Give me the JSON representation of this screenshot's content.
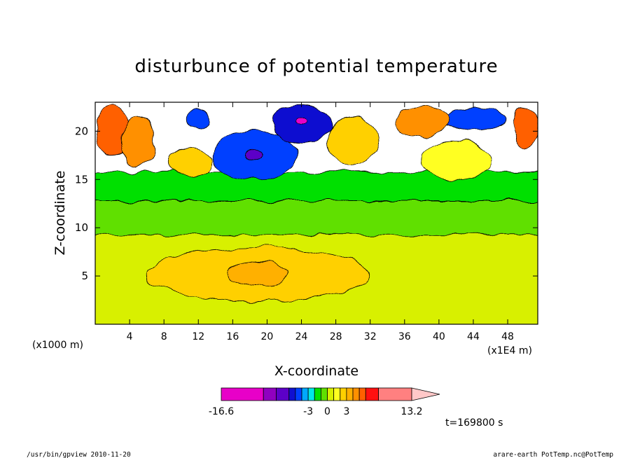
{
  "chart_data": {
    "type": "heatmap",
    "title": "disturbunce of potential temperature",
    "xlabel": "X-coordinate",
    "ylabel": "Z-coordinate",
    "x_unit_label": "(x1E4 m)",
    "y_unit_label": "(x1000 m)",
    "xlim": [
      0,
      51.5
    ],
    "ylim": [
      0,
      23
    ],
    "x_ticks": [
      4,
      8,
      12,
      16,
      20,
      24,
      28,
      32,
      36,
      40,
      44,
      48
    ],
    "y_ticks": [
      5,
      10,
      15,
      20
    ],
    "time_label": "t=169800 s",
    "colorbar": {
      "min": -16.6,
      "max": 13.2,
      "tick_labels": [
        "-16.6",
        "-3",
        "0",
        "3",
        "13.2"
      ],
      "tick_values": [
        -16.6,
        -3,
        0,
        3,
        13.2
      ],
      "levels": [
        -16.6,
        -10.0,
        -8.0,
        -6.0,
        -5.0,
        -4.0,
        -3.0,
        -2.0,
        -1.0,
        0.0,
        1.0,
        2.0,
        3.0,
        4.0,
        5.0,
        6.0,
        8.0,
        13.2
      ],
      "colors": [
        "#e800c8",
        "#9000c0",
        "#5c00c8",
        "#1010d0",
        "#0040ff",
        "#00a8ff",
        "#00e8e8",
        "#00e000",
        "#60e000",
        "#d8f000",
        "#ffff20",
        "#ffd000",
        "#ffb000",
        "#ff9000",
        "#ff6000",
        "#ff1010",
        "#ff8080"
      ]
    },
    "features": [
      {
        "type": "band",
        "x": [
          0,
          51.5
        ],
        "y": [
          12.8,
          15.8
        ],
        "value": -1.5
      },
      {
        "type": "band",
        "x": [
          0,
          51.5
        ],
        "y": [
          9.3,
          12.8
        ],
        "value": -0.6
      },
      {
        "type": "band",
        "x": [
          0,
          51.5
        ],
        "y": [
          0,
          9.3
        ],
        "value": 0.6
      },
      {
        "type": "blob",
        "cx": 19,
        "cy": 5.2,
        "rx": 13,
        "ry": 2.8,
        "value": 2.4
      },
      {
        "type": "blob",
        "cx": 19,
        "cy": 5.2,
        "rx": 3.5,
        "ry": 1.3,
        "value": 3.4
      },
      {
        "type": "blob",
        "cx": 18.5,
        "cy": 17.5,
        "rx": 5,
        "ry": 2.5,
        "value": -4.5
      },
      {
        "type": "blob",
        "cx": 18.5,
        "cy": 17.7,
        "rx": 1.2,
        "ry": 0.6,
        "value": -8.0
      },
      {
        "type": "blob",
        "cx": 24,
        "cy": 20.8,
        "rx": 3.5,
        "ry": 2.0,
        "value": -5.5
      },
      {
        "type": "blob",
        "cx": 24,
        "cy": 21.0,
        "rx": 0.8,
        "ry": 0.5,
        "value": -12.0
      },
      {
        "type": "blob",
        "cx": 12,
        "cy": 21.2,
        "rx": 1.5,
        "ry": 1.2,
        "value": -5.0
      },
      {
        "type": "blob",
        "cx": 44,
        "cy": 21.2,
        "rx": 3.5,
        "ry": 1.2,
        "value": -4.8
      },
      {
        "type": "blob",
        "cx": 2,
        "cy": 20,
        "rx": 2,
        "ry": 2.5,
        "value": 5.5
      },
      {
        "type": "blob",
        "cx": 5,
        "cy": 19,
        "rx": 2,
        "ry": 2.5,
        "value": 4.5
      },
      {
        "type": "blob",
        "cx": 38,
        "cy": 21,
        "rx": 3,
        "ry": 1.5,
        "value": 4.2
      },
      {
        "type": "blob",
        "cx": 50,
        "cy": 20.5,
        "rx": 1.5,
        "ry": 2,
        "value": 5.5
      },
      {
        "type": "blob",
        "cx": 11,
        "cy": 16.8,
        "rx": 2.5,
        "ry": 1.5,
        "value": 2.5
      },
      {
        "type": "blob",
        "cx": 30,
        "cy": 19,
        "rx": 3,
        "ry": 2.5,
        "value": 2.0
      },
      {
        "type": "blob",
        "cx": 42,
        "cy": 17,
        "rx": 4,
        "ry": 2,
        "value": 1.5
      }
    ],
    "grid": false
  },
  "footer": {
    "left": "/usr/bin/gpview  2010-11-20",
    "right": "arare-earth_PotTemp.nc@PotTemp"
  }
}
